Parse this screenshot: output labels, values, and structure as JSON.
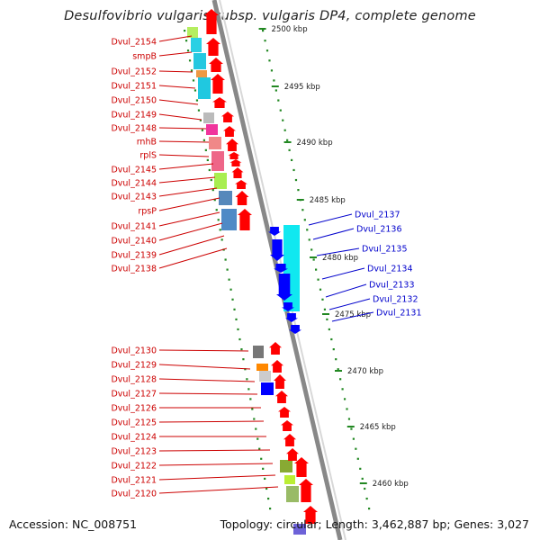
{
  "title": "Desulfovibrio vulgaris subsp. vulgaris DP4, complete genome",
  "footer": {
    "accession": "Accession: NC_008751",
    "summary": "Topology: circular; Length: 3,462,887 bp; Genes: 3,027"
  },
  "colors": {
    "forward_label": "#cc0000",
    "reverse_label": "#0000cc",
    "forward_gene": "#ff0000",
    "reverse_gene": "#0000ff",
    "backbone": "#888888",
    "ruler_dots": "#228822"
  },
  "scale": {
    "unit": "kbp",
    "ticks": [
      {
        "label": "2500 kbp",
        "kbp": 2500
      },
      {
        "label": "2495 kbp",
        "kbp": 2495
      },
      {
        "label": "2490 kbp",
        "kbp": 2490
      },
      {
        "label": "2485 kbp",
        "kbp": 2485
      },
      {
        "label": "2480 kbp",
        "kbp": 2480
      },
      {
        "label": "2475 kbp",
        "kbp": 2475
      },
      {
        "label": "2470 kbp",
        "kbp": 2470
      },
      {
        "label": "2465 kbp",
        "kbp": 2465
      },
      {
        "label": "2460 kbp",
        "kbp": 2460
      }
    ]
  },
  "forward_genes": [
    "Dvul_2154",
    "smpB",
    "Dvul_2152",
    "Dvul_2151",
    "Dvul_2150",
    "Dvul_2149",
    "Dvul_2148",
    "rnhB",
    "rplS",
    "Dvul_2145",
    "Dvul_2144",
    "Dvul_2143",
    "rpsP",
    "Dvul_2141",
    "Dvul_2140",
    "Dvul_2139",
    "Dvul_2138",
    "Dvul_2130",
    "Dvul_2129",
    "Dvul_2128",
    "Dvul_2127",
    "Dvul_2126",
    "Dvul_2125",
    "Dvul_2124",
    "Dvul_2123",
    "Dvul_2122",
    "Dvul_2121",
    "Dvul_2120"
  ],
  "reverse_genes": [
    "Dvul_2137",
    "Dvul_2136",
    "Dvul_2135",
    "Dvul_2134",
    "Dvul_2133",
    "Dvul_2132",
    "Dvul_2131"
  ]
}
